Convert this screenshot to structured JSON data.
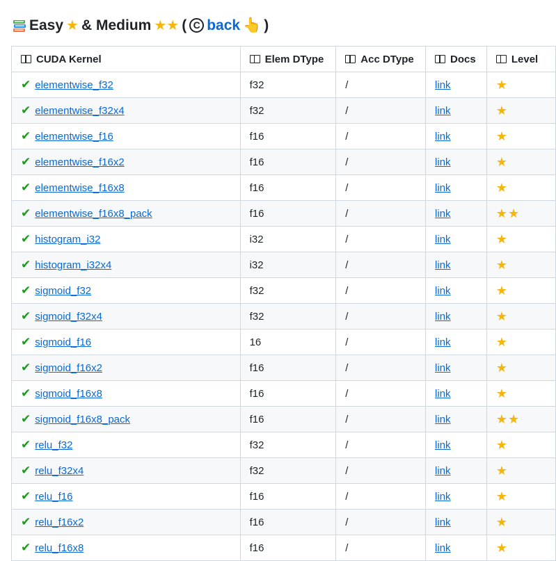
{
  "heading": {
    "icon": "books-icon",
    "easy": "Easy",
    "amp": "& Medium",
    "open": "(",
    "back": "back",
    "close": ")",
    "copyright": "C"
  },
  "headers": [
    "CUDA Kernel",
    "Elem DType",
    "Acc DType",
    "Docs",
    "Level"
  ],
  "colors": {
    "link": "#0969da",
    "check": "#1a9b1a",
    "star": "#f5b50a"
  },
  "rows": [
    {
      "kernel": "elementwise_f32",
      "elem": "f32",
      "acc": "/",
      "docs": "link",
      "level": 1
    },
    {
      "kernel": "elementwise_f32x4",
      "elem": "f32",
      "acc": "/",
      "docs": "link",
      "level": 1
    },
    {
      "kernel": "elementwise_f16",
      "elem": "f16",
      "acc": "/",
      "docs": "link",
      "level": 1
    },
    {
      "kernel": "elementwise_f16x2",
      "elem": "f16",
      "acc": "/",
      "docs": "link",
      "level": 1
    },
    {
      "kernel": "elementwise_f16x8",
      "elem": "f16",
      "acc": "/",
      "docs": "link",
      "level": 1
    },
    {
      "kernel": "elementwise_f16x8_pack",
      "elem": "f16",
      "acc": "/",
      "docs": "link",
      "level": 2
    },
    {
      "kernel": "histogram_i32",
      "elem": "i32",
      "acc": "/",
      "docs": "link",
      "level": 1
    },
    {
      "kernel": "histogram_i32x4",
      "elem": "i32",
      "acc": "/",
      "docs": "link",
      "level": 1
    },
    {
      "kernel": "sigmoid_f32",
      "elem": "f32",
      "acc": "/",
      "docs": "link",
      "level": 1
    },
    {
      "kernel": "sigmoid_f32x4",
      "elem": "f32",
      "acc": "/",
      "docs": "link",
      "level": 1
    },
    {
      "kernel": "sigmoid_f16",
      "elem": "16",
      "acc": "/",
      "docs": "link",
      "level": 1
    },
    {
      "kernel": "sigmoid_f16x2",
      "elem": "f16",
      "acc": "/",
      "docs": "link",
      "level": 1
    },
    {
      "kernel": "sigmoid_f16x8",
      "elem": "f16",
      "acc": "/",
      "docs": "link",
      "level": 1
    },
    {
      "kernel": "sigmoid_f16x8_pack",
      "elem": "f16",
      "acc": "/",
      "docs": "link",
      "level": 2
    },
    {
      "kernel": "relu_f32",
      "elem": "f32",
      "acc": "/",
      "docs": "link",
      "level": 1
    },
    {
      "kernel": "relu_f32x4",
      "elem": "f32",
      "acc": "/",
      "docs": "link",
      "level": 1
    },
    {
      "kernel": "relu_f16",
      "elem": "f16",
      "acc": "/",
      "docs": "link",
      "level": 1
    },
    {
      "kernel": "relu_f16x2",
      "elem": "f16",
      "acc": "/",
      "docs": "link",
      "level": 1
    },
    {
      "kernel": "relu_f16x8",
      "elem": "f16",
      "acc": "/",
      "docs": "link",
      "level": 1
    }
  ]
}
